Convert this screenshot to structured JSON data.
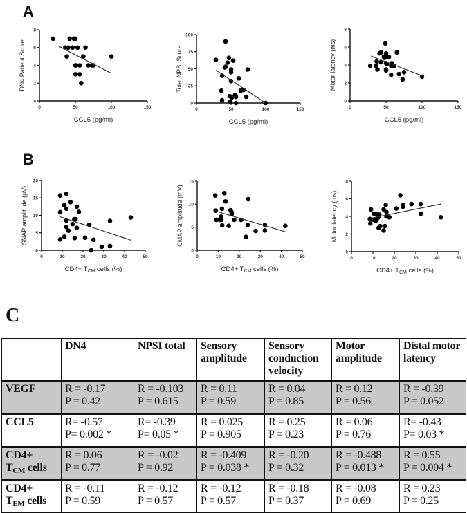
{
  "panels": {
    "a": "A",
    "b": "B",
    "c": "C"
  },
  "chart_data": [
    {
      "type": "scatter",
      "xlabel": "CCL5 (pg/ml)",
      "ylabel": "DN4 Patient  Score",
      "xlim": [
        0,
        150
      ],
      "ylim": [
        0,
        8
      ],
      "xticks": [
        0,
        50,
        100,
        150
      ],
      "yticks": [
        0,
        2,
        4,
        6,
        8
      ],
      "points": [
        [
          19,
          7
        ],
        [
          42,
          7
        ],
        [
          48,
          7
        ],
        [
          50,
          7
        ],
        [
          36,
          6
        ],
        [
          40,
          6
        ],
        [
          46,
          6
        ],
        [
          53,
          6
        ],
        [
          64,
          6
        ],
        [
          38,
          5
        ],
        [
          61,
          5
        ],
        [
          100,
          5
        ],
        [
          50,
          4
        ],
        [
          51,
          4
        ],
        [
          56,
          4
        ],
        [
          68,
          4
        ],
        [
          73,
          4
        ],
        [
          75,
          4
        ],
        [
          50,
          3
        ],
        [
          56,
          3
        ],
        [
          58,
          2
        ]
      ],
      "fit": [
        [
          28,
          6.1
        ],
        [
          100,
          3.1
        ]
      ]
    },
    {
      "type": "scatter",
      "xlabel": "CCL5 (pg/ml)",
      "ylabel": "Total  NPSI Score",
      "xlim": [
        0,
        150
      ],
      "ylim": [
        0,
        100
      ],
      "xticks": [
        0,
        50,
        100,
        150
      ],
      "yticks": [
        0,
        25,
        50,
        75,
        100
      ],
      "points": [
        [
          28,
          63
        ],
        [
          42,
          90
        ],
        [
          47,
          66
        ],
        [
          45,
          59
        ],
        [
          41,
          52
        ],
        [
          42,
          53
        ],
        [
          53,
          62
        ],
        [
          50,
          49
        ],
        [
          50,
          45
        ],
        [
          37,
          40
        ],
        [
          50,
          32
        ],
        [
          61,
          36
        ],
        [
          74,
          49
        ],
        [
          36,
          18
        ],
        [
          37,
          4
        ],
        [
          48,
          10
        ],
        [
          50,
          9
        ],
        [
          51,
          8
        ],
        [
          56,
          12
        ],
        [
          57,
          9
        ],
        [
          64,
          18
        ],
        [
          68,
          19
        ],
        [
          72,
          9
        ],
        [
          49,
          2
        ],
        [
          57,
          0
        ],
        [
          100,
          0
        ]
      ],
      "fit": [
        [
          28,
          48
        ],
        [
          100,
          0
        ]
      ]
    },
    {
      "type": "scatter",
      "xlabel": "CCL5 (pg/ml)",
      "ylabel": "Motor latency (ms)",
      "xlim": [
        0,
        150
      ],
      "ylim": [
        0,
        8
      ],
      "xticks": [
        0,
        50,
        100,
        150
      ],
      "yticks": [
        0,
        2,
        4,
        6,
        8
      ],
      "points": [
        [
          28,
          3.9
        ],
        [
          37,
          4.4
        ],
        [
          36,
          3.9
        ],
        [
          38,
          3.5
        ],
        [
          41,
          5.3
        ],
        [
          43,
          5.4
        ],
        [
          43,
          4.3
        ],
        [
          47,
          4.9
        ],
        [
          48,
          4.8
        ],
        [
          49,
          6.4
        ],
        [
          50,
          5.3
        ],
        [
          50,
          5.1
        ],
        [
          50,
          4.2
        ],
        [
          51,
          4.1
        ],
        [
          50,
          3.5
        ],
        [
          50,
          3.4
        ],
        [
          54,
          4.9
        ],
        [
          58,
          4.2
        ],
        [
          57,
          3.9
        ],
        [
          61,
          3.9
        ],
        [
          65,
          5.4
        ],
        [
          57,
          2.9
        ],
        [
          68,
          3.0
        ],
        [
          75,
          3.2
        ],
        [
          73,
          2.4
        ],
        [
          100,
          2.7
        ]
      ],
      "fit": [
        [
          29,
          5.0
        ],
        [
          100,
          2.8
        ]
      ]
    },
    {
      "type": "scatter",
      "xlabel": "CD4+ TCM cells (%)",
      "xlabel_parts": [
        "CD4+ T",
        "CM",
        " cells (%)"
      ],
      "ylabel": "SNAP amplitude (µV)",
      "xlim": [
        0,
        50
      ],
      "ylim": [
        0,
        20
      ],
      "xticks": [
        0,
        10,
        20,
        30,
        40,
        50
      ],
      "yticks": [
        0,
        5,
        10,
        15,
        20
      ],
      "points": [
        [
          9,
          15.7
        ],
        [
          12,
          16.2
        ],
        [
          11,
          12.9
        ],
        [
          12,
          11.9
        ],
        [
          14,
          13.8
        ],
        [
          17,
          12.5
        ],
        [
          18,
          11.0
        ],
        [
          9,
          10.9
        ],
        [
          12,
          8.5
        ],
        [
          15.8,
          8.9
        ],
        [
          16.4,
          8.9
        ],
        [
          15,
          7.5
        ],
        [
          12,
          6.7
        ],
        [
          17,
          6.4
        ],
        [
          13,
          5.6
        ],
        [
          9,
          3.1
        ],
        [
          11,
          3.9
        ],
        [
          16,
          3.5
        ],
        [
          21,
          3.6
        ],
        [
          25,
          3.0
        ],
        [
          23,
          7.3
        ],
        [
          24,
          0
        ],
        [
          29,
          1
        ],
        [
          33,
          1.2
        ],
        [
          33,
          8.4
        ],
        [
          43,
          9.4
        ]
      ],
      "fit": [
        [
          9,
          9.6
        ],
        [
          43,
          2.9
        ]
      ]
    },
    {
      "type": "scatter",
      "xlabel": "CD4+ TCM cells (%)",
      "xlabel_parts": [
        "CD4+ T",
        "CM",
        " cells (%)"
      ],
      "ylabel": "CMAP amplitude (mV)",
      "xlim": [
        0,
        50
      ],
      "ylim": [
        0,
        15
      ],
      "xticks": [
        0,
        10,
        20,
        30,
        40,
        50
      ],
      "yticks": [
        0,
        5,
        10,
        15
      ],
      "points": [
        [
          8.6,
          11.9
        ],
        [
          12.9,
          12.4
        ],
        [
          13.5,
          10.6
        ],
        [
          24.3,
          11.1
        ],
        [
          8.8,
          8.6
        ],
        [
          11.8,
          9.0
        ],
        [
          15.9,
          8.7
        ],
        [
          16.3,
          8.3
        ],
        [
          16.5,
          7.9
        ],
        [
          9.1,
          6.6
        ],
        [
          10.7,
          6.6
        ],
        [
          11.3,
          7.3
        ],
        [
          11.5,
          6.6
        ],
        [
          17.6,
          6.6
        ],
        [
          20.9,
          6.6
        ],
        [
          11.9,
          5.4
        ],
        [
          15,
          5.3
        ],
        [
          24,
          5.5
        ],
        [
          27.8,
          4.2
        ],
        [
          32.2,
          5.5
        ],
        [
          32.2,
          4.3
        ],
        [
          23.2,
          2.9
        ],
        [
          41.9,
          5.3
        ]
      ],
      "fit": [
        [
          8.8,
          8.5
        ],
        [
          42,
          4.0
        ]
      ]
    },
    {
      "type": "scatter",
      "xlabel": "CD4+ TCM cells (%)",
      "xlabel_parts": [
        "CD4+ T",
        "CM",
        " cells (%)"
      ],
      "ylabel": "Motor latency (ms)",
      "xlim": [
        0,
        50
      ],
      "ylim": [
        0,
        8
      ],
      "xticks": [
        0,
        10,
        20,
        30,
        40,
        50
      ],
      "yticks": [
        0,
        2,
        4,
        6,
        8
      ],
      "points": [
        [
          8.6,
          3.7
        ],
        [
          8.8,
          3.2
        ],
        [
          9.1,
          4.8
        ],
        [
          10.5,
          4.3
        ],
        [
          11.8,
          4.3
        ],
        [
          10.5,
          3.6
        ],
        [
          11.3,
          3.5
        ],
        [
          11.8,
          3.7
        ],
        [
          13,
          4.2
        ],
        [
          12.5,
          3.9
        ],
        [
          12.7,
          2.7
        ],
        [
          13.4,
          2.9
        ],
        [
          15,
          4.8
        ],
        [
          16,
          5.3
        ],
        [
          16.3,
          4.5
        ],
        [
          16.3,
          4.0
        ],
        [
          17.7,
          3.9
        ],
        [
          15,
          2.4
        ],
        [
          15.6,
          2.9
        ],
        [
          20.9,
          4.9
        ],
        [
          22.8,
          6.4
        ],
        [
          24,
          5.1
        ],
        [
          24.2,
          5.3
        ],
        [
          28,
          5.4
        ],
        [
          32.3,
          5.4
        ],
        [
          32.3,
          4.3
        ],
        [
          41.7,
          3.9
        ]
      ],
      "fit": [
        [
          9.1,
          3.8
        ],
        [
          41.7,
          5.4
        ]
      ]
    }
  ],
  "table": {
    "headers": [
      "",
      "DN4",
      "NPSI total",
      "Sensory amplitude",
      "Sensory conduction velocity",
      "Motor amplitude",
      "Distal motor latency"
    ],
    "rows": [
      {
        "label": "VEGF",
        "label_parts": [
          "VEGF"
        ],
        "shaded": true,
        "cells": [
          [
            "R = -0.17",
            "P = 0.42"
          ],
          [
            "R = -0.103",
            "P = 0.615"
          ],
          [
            "R = 0.11",
            "P = 0.59"
          ],
          [
            "R = 0.04",
            "P = 0.85"
          ],
          [
            "R = 0.12",
            "P = 0.56"
          ],
          [
            "R = -0.39",
            "P = 0.052"
          ]
        ]
      },
      {
        "label": "CCL5",
        "label_parts": [
          "CCL5"
        ],
        "shaded": false,
        "cells": [
          [
            "R= -0.57",
            "P= 0.002 *"
          ],
          [
            "R= -0.39",
            "P= 0.05 *"
          ],
          [
            "R = 0.025",
            "P = 0.905"
          ],
          [
            "R = 0.25",
            "P = 0.23"
          ],
          [
            "R = 0.06",
            "P = 0.76"
          ],
          [
            "R= -0.43",
            "P= 0.03 *"
          ]
        ]
      },
      {
        "label": "CD4+ TCM cells",
        "label_parts": [
          "CD4+",
          "T",
          "CM",
          " cells"
        ],
        "shaded": true,
        "cells": [
          [
            "R = 0.06",
            "P = 0.77"
          ],
          [
            "R = -0.02",
            "P = 0.92"
          ],
          [
            "R = -0.409",
            "P = 0.038 *"
          ],
          [
            "R = -0.20",
            "P = 0.32"
          ],
          [
            "R = -0.488",
            "P = 0.013 *"
          ],
          [
            "R = 0.55",
            "P = 0.004 *"
          ]
        ]
      },
      {
        "label": "CD4+ TEM cells",
        "label_parts": [
          "CD4+",
          "T",
          "EM",
          " cells"
        ],
        "shaded": false,
        "cells": [
          [
            "R = -0.11",
            "P = 0.59"
          ],
          [
            "R = -0.12",
            "P = 0.57"
          ],
          [
            "R = -0.12",
            "P = 0.57"
          ],
          [
            "R = -0.18",
            "P = 0.37"
          ],
          [
            "R = -0.08",
            "P = 0.69"
          ],
          [
            "R = 0.23",
            "P = 0.25"
          ]
        ]
      }
    ]
  }
}
